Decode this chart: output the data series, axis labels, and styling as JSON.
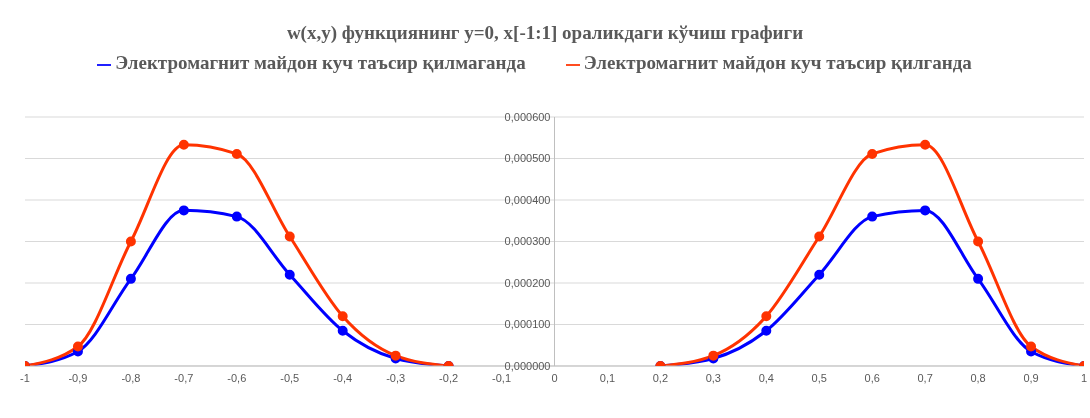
{
  "chart_data": {
    "type": "line",
    "title": "w(x,y) функциянинг y=0, x[-1:1] ораликдаги кўчиш графиги",
    "x": [
      -1,
      -0.9,
      -0.8,
      -0.7,
      -0.6,
      -0.5,
      -0.4,
      -0.3,
      -0.2,
      0,
      0.2,
      0.3,
      0.4,
      0.5,
      0.6,
      0.7,
      0.8,
      0.9,
      1
    ],
    "series": [
      {
        "name": "Электромагнит майдон куч таъсир қилмаганда",
        "color": "#0000ff",
        "values": [
          0,
          3.5e-05,
          0.00021,
          0.000375,
          0.00036,
          0.00022,
          8.5e-05,
          1.8e-05,
          0,
          null,
          0,
          1.8e-05,
          8.5e-05,
          0.00022,
          0.00036,
          0.000375,
          0.00021,
          3.5e-05,
          0
        ]
      },
      {
        "name": "Электромагнит майдон куч таъсир қилганда",
        "color": "#ff3300",
        "values": [
          0,
          4.7e-05,
          0.0003,
          0.000533,
          0.000511,
          0.000312,
          0.00012,
          2.5e-05,
          0,
          null,
          0,
          2.5e-05,
          0.00012,
          0.000312,
          0.000511,
          0.000533,
          0.0003,
          4.7e-05,
          0
        ]
      }
    ],
    "xlim": [
      -1,
      1
    ],
    "xticks": [
      {
        "value": -1,
        "label": "-1"
      },
      {
        "value": -0.9,
        "label": "-0,9"
      },
      {
        "value": -0.8,
        "label": "-0,8"
      },
      {
        "value": -0.7,
        "label": "-0,7"
      },
      {
        "value": -0.6,
        "label": "-0,6"
      },
      {
        "value": -0.5,
        "label": "-0,5"
      },
      {
        "value": -0.4,
        "label": "-0,4"
      },
      {
        "value": -0.3,
        "label": "-0,3"
      },
      {
        "value": -0.2,
        "label": "-0,2"
      },
      {
        "value": -0.1,
        "label": "-0,1"
      },
      0,
      {
        "value": 0.1,
        "label": "0,1"
      },
      {
        "value": 0.2,
        "label": "0,2"
      },
      {
        "value": 0.3,
        "label": "0,3"
      },
      {
        "value": 0.4,
        "label": "0,4"
      },
      {
        "value": 0.5,
        "label": "0,5"
      },
      {
        "value": 0.6,
        "label": "0,6"
      },
      {
        "value": 0.7,
        "label": "0,7"
      },
      {
        "value": 0.8,
        "label": "0,8"
      },
      {
        "value": 0.9,
        "label": "0,9"
      },
      1
    ],
    "ylim": [
      0,
      0.0006
    ],
    "yticks": [
      {
        "value": 0,
        "label": "0,000000"
      },
      {
        "value": 0.0001,
        "label": "0,000100"
      },
      {
        "value": 0.0002,
        "label": "0,000200"
      },
      {
        "value": 0.0003,
        "label": "0,000300"
      },
      {
        "value": 0.0004,
        "label": "0,000400"
      },
      {
        "value": 0.0005,
        "label": "0,000500"
      },
      {
        "value": 0.0006,
        "label": "0,000600"
      }
    ],
    "grid": "y",
    "legend": "top",
    "marker": "circle",
    "line_style": "solid"
  }
}
